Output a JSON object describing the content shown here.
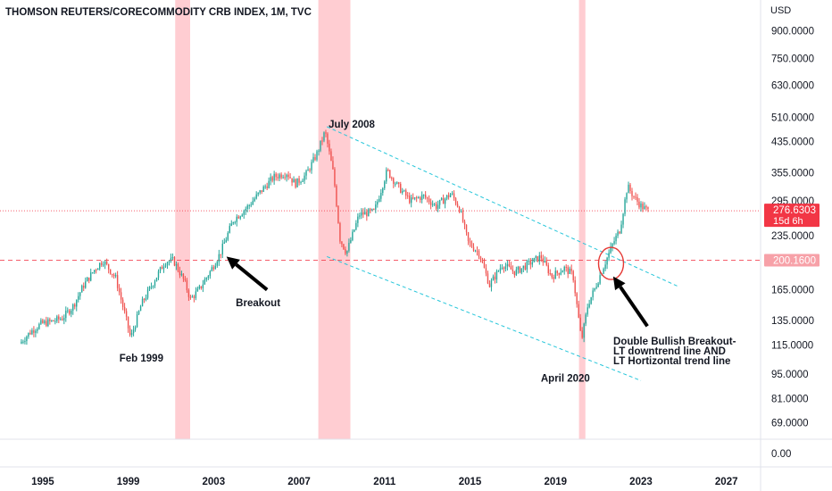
{
  "chart_data": {
    "type": "candlestick",
    "title": "THOMSON REUTERS/CORECOMMODITY CRB INDEX, 1M, TVC",
    "yunit": "USD",
    "yscale": "log",
    "ylim": [
      62,
      1100
    ],
    "xlim": [
      1993.0,
      2028.6
    ],
    "y_ticks": [
      "900.0000",
      "750.0000",
      "630.0000",
      "510.0000",
      "435.0000",
      "355.0000",
      "295.0000",
      "235.0000",
      "165.0000",
      "135.0000",
      "115.0000",
      "95.0000",
      "81.0000",
      "69.0000"
    ],
    "y_tick_values": [
      900,
      750,
      630,
      510,
      435,
      355,
      295,
      235,
      165,
      135,
      115,
      95,
      81,
      69
    ],
    "sub_pane_tick": "0.00",
    "x_ticks": [
      "1995",
      "1999",
      "2003",
      "2007",
      "2011",
      "2015",
      "2019",
      "2023",
      "2027"
    ],
    "x_tick_values": [
      1995,
      1999,
      2003,
      2007,
      2011,
      2015,
      2019,
      2023,
      2027
    ],
    "shaded_periods": [
      [
        2001.2,
        2001.9
      ],
      [
        2007.9,
        2009.4
      ],
      [
        2020.1,
        2020.4
      ]
    ],
    "price_path": [
      [
        1994.0,
        116
      ],
      [
        1994.5,
        125
      ],
      [
        1995.0,
        132
      ],
      [
        1995.5,
        134
      ],
      [
        1996.0,
        137
      ],
      [
        1996.5,
        148
      ],
      [
        1997.0,
        170
      ],
      [
        1997.5,
        188
      ],
      [
        1997.9,
        200
      ],
      [
        1998.5,
        178
      ],
      [
        1999.0,
        135
      ],
      [
        1999.2,
        120
      ],
      [
        1999.7,
        150
      ],
      [
        2000.3,
        175
      ],
      [
        2000.8,
        198
      ],
      [
        2001.2,
        200
      ],
      [
        2001.7,
        175
      ],
      [
        2002.0,
        155
      ],
      [
        2002.4,
        165
      ],
      [
        2002.9,
        185
      ],
      [
        2003.4,
        210
      ],
      [
        2004.0,
        260
      ],
      [
        2004.7,
        285
      ],
      [
        2005.3,
        315
      ],
      [
        2005.9,
        345
      ],
      [
        2006.5,
        355
      ],
      [
        2006.9,
        330
      ],
      [
        2007.4,
        350
      ],
      [
        2007.9,
        400
      ],
      [
        2008.3,
        465
      ],
      [
        2008.7,
        350
      ],
      [
        2009.0,
        230
      ],
      [
        2009.3,
        210
      ],
      [
        2009.9,
        270
      ],
      [
        2010.6,
        275
      ],
      [
        2011.2,
        360
      ],
      [
        2011.7,
        325
      ],
      [
        2012.3,
        295
      ],
      [
        2012.9,
        305
      ],
      [
        2013.5,
        285
      ],
      [
        2014.2,
        310
      ],
      [
        2014.6,
        280
      ],
      [
        2015.0,
        225
      ],
      [
        2015.5,
        210
      ],
      [
        2016.0,
        170
      ],
      [
        2016.6,
        195
      ],
      [
        2017.2,
        185
      ],
      [
        2017.8,
        195
      ],
      [
        2018.4,
        205
      ],
      [
        2018.9,
        180
      ],
      [
        2019.5,
        190
      ],
      [
        2019.9,
        182
      ],
      [
        2020.3,
        118
      ],
      [
        2020.6,
        150
      ],
      [
        2020.9,
        165
      ],
      [
        2021.3,
        190
      ],
      [
        2021.8,
        225
      ],
      [
        2022.1,
        245
      ],
      [
        2022.45,
        325
      ],
      [
        2022.8,
        300
      ],
      [
        2023.1,
        285
      ],
      [
        2023.4,
        277
      ]
    ],
    "reference_lines": [
      {
        "label": "276.6303",
        "value": 276.6303,
        "color": "#f23645",
        "style": "dotted",
        "sublabel": "15d 6h"
      },
      {
        "label": "200.1600",
        "value": 200.16,
        "color": "#f23645",
        "style": "dashed"
      }
    ],
    "trend_lines": [
      {
        "from": [
          2008.3,
          480
        ],
        "to": [
          2024.8,
          168
        ],
        "color": "#26c6da"
      },
      {
        "from": [
          2008.3,
          205
        ],
        "to": [
          2023.0,
          91
        ],
        "color": "#26c6da"
      }
    ],
    "annotations": [
      {
        "text": "July 2008",
        "x": 2008.3,
        "y": 480
      },
      {
        "text": "Feb 1999",
        "x": 1999.2,
        "y": 120
      },
      {
        "text": "Breakout",
        "x": 2003.2,
        "y": 208
      },
      {
        "text": "April 2020",
        "x": 2020.3,
        "y": 104
      },
      {
        "text": "Double Bullish Breakout-",
        "x": 2022.0,
        "y": 188
      },
      {
        "text": "LT downtrend line AND",
        "x": 2022.0,
        "y": 188
      },
      {
        "text": "LT Hortizontal trend line",
        "x": 2022.0,
        "y": 188
      }
    ],
    "grid": false
  },
  "colors": {
    "up": "#26a69a",
    "down": "#ef5350",
    "shade": "#ffcdd2",
    "badge": "#f23645",
    "trend": "#26c6da"
  }
}
